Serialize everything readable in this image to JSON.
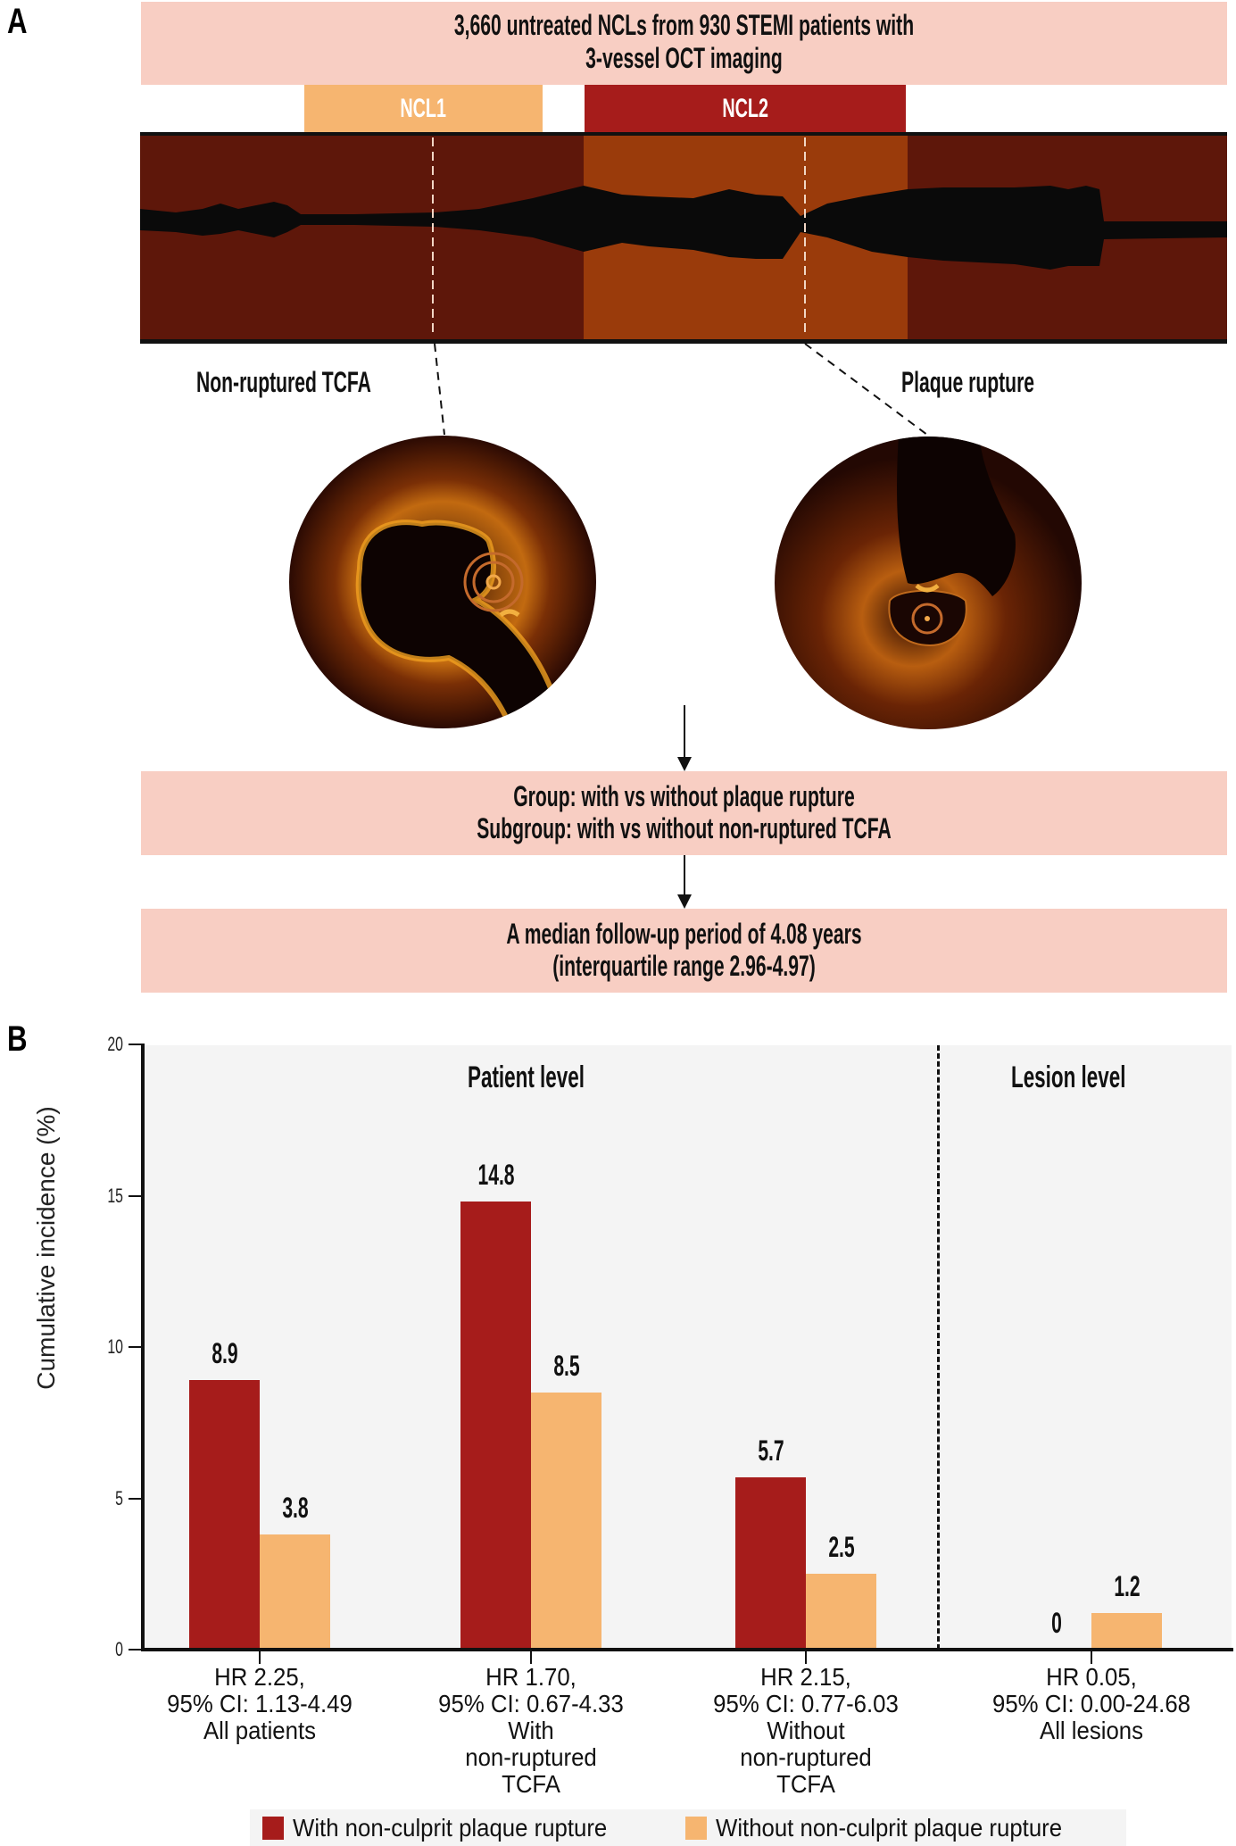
{
  "panel_a": {
    "letter": "A",
    "header_line1": "3,660 untreated NCLs from 930 STEMI patients with",
    "header_line2": "3-vessel OCT imaging",
    "ncl1_label": "NCL1",
    "ncl2_label": "NCL2",
    "left_image_label": "Non-ruptured TCFA",
    "right_image_label": "Plaque rupture",
    "group_line1": "Group: with vs without plaque rupture",
    "group_line2": "Subgroup: with vs without non-ruptured TCFA",
    "followup_line1": "A median follow-up period of 4.08 years",
    "followup_line2": "(interquartile range 2.96-4.97)",
    "colors": {
      "pink_box": "#f8cec3",
      "ncl1": "#f6b570",
      "ncl2": "#a61c1b",
      "pullback_dark": "#5e170a",
      "pullback_highlight": "#9a3b0b"
    }
  },
  "panel_b": {
    "letter": "B",
    "y_axis_title": "Cumulative incidence (%)",
    "y_ticks": [
      "0",
      "5",
      "10",
      "15",
      "20"
    ],
    "section_patient": "Patient level",
    "section_lesion": "Lesion level",
    "groups": [
      {
        "red_label": "8.9",
        "orange_label": "3.8",
        "hr": "HR 2.25,",
        "ci": "95% CI: 1.13-4.49",
        "desc1": "All patients",
        "desc2": "",
        "desc3": ""
      },
      {
        "red_label": "14.8",
        "orange_label": "8.5",
        "hr": "HR 1.70,",
        "ci": "95% CI: 0.67-4.33",
        "desc1": "With",
        "desc2": "non-ruptured",
        "desc3": "TCFA"
      },
      {
        "red_label": "5.7",
        "orange_label": "2.5",
        "hr": "HR 2.15,",
        "ci": "95% CI: 0.77-6.03",
        "desc1": "Without",
        "desc2": "non-ruptured",
        "desc3": "TCFA"
      },
      {
        "red_label": "0",
        "orange_label": "1.2",
        "hr": "HR 0.05,",
        "ci": "95% CI: 0.00-24.68",
        "desc1": "All lesions",
        "desc2": "",
        "desc3": ""
      }
    ],
    "legend": {
      "with_label": "With non-culprit plaque rupture",
      "without_label": "Without non-culprit plaque rupture",
      "with_color": "#a61c1b",
      "without_color": "#f6b570"
    }
  },
  "chart_data": {
    "type": "bar",
    "title": "",
    "xlabel": "",
    "ylabel": "Cumulative incidence (%)",
    "ylim": [
      0,
      20
    ],
    "yticks": [
      0,
      5,
      10,
      15,
      20
    ],
    "grid": false,
    "legend_position": "bottom",
    "categories": [
      "HR 2.25, 95% CI: 1.13-4.49 All patients",
      "HR 1.70, 95% CI: 0.67-4.33 With non-ruptured TCFA",
      "HR 2.15, 95% CI: 0.77-6.03 Without non-ruptured TCFA",
      "HR 0.05, 95% CI: 0.00-24.68 All lesions"
    ],
    "series": [
      {
        "name": "With non-culprit plaque rupture",
        "color": "#a61c1b",
        "values": [
          8.9,
          14.8,
          5.7,
          0
        ]
      },
      {
        "name": "Without non-culprit plaque rupture",
        "color": "#f6b570",
        "values": [
          3.8,
          8.5,
          2.5,
          1.2
        ]
      }
    ],
    "annotations": [
      "Patient level",
      "Lesion level"
    ],
    "sections": [
      {
        "label": "Patient level",
        "categories": [
          0,
          1,
          2
        ]
      },
      {
        "label": "Lesion level",
        "categories": [
          3
        ]
      }
    ]
  }
}
